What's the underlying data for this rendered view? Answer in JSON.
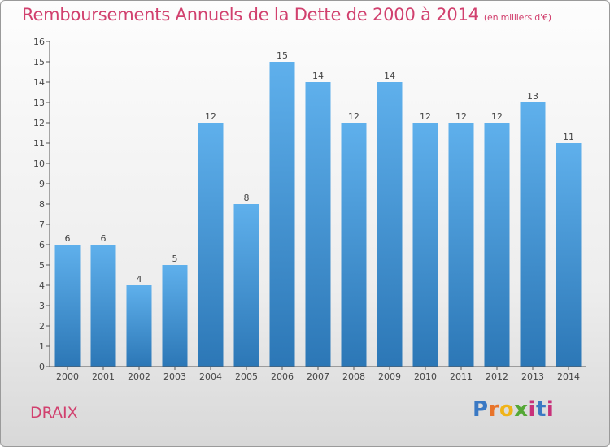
{
  "header": {
    "title": "Remboursements Annuels de la Dette de 2000 à 2014",
    "unit": "(en milliers d'€)"
  },
  "footer": {
    "commune": "DRAIX",
    "logo_text": "Proxiti"
  },
  "colors": {
    "title": "#d1406e",
    "bar_top": "#5fb0ec",
    "bar_bottom": "#2c77b6"
  },
  "chart_data": {
    "type": "bar",
    "title": "Remboursements Annuels de la Dette de 2000 à 2014",
    "categories": [
      "2000",
      "2001",
      "2002",
      "2003",
      "2004",
      "2005",
      "2006",
      "2007",
      "2008",
      "2009",
      "2010",
      "2011",
      "2012",
      "2013",
      "2014"
    ],
    "values": [
      6,
      6,
      4,
      5,
      12,
      8,
      15,
      14,
      12,
      14,
      12,
      12,
      12,
      13,
      11
    ],
    "data_labels": [
      "6",
      "6",
      "4",
      "5",
      "12",
      "8",
      "15",
      "14",
      "12",
      "14",
      "12",
      "12",
      "12",
      "13",
      "11"
    ],
    "y_ticks": [
      "0",
      "1",
      "2",
      "3",
      "4",
      "5",
      "6",
      "7",
      "8",
      "9",
      "10",
      "11",
      "12",
      "13",
      "14",
      "15",
      "16"
    ],
    "ylim": [
      0,
      16
    ],
    "grid": false,
    "legend": "none"
  }
}
